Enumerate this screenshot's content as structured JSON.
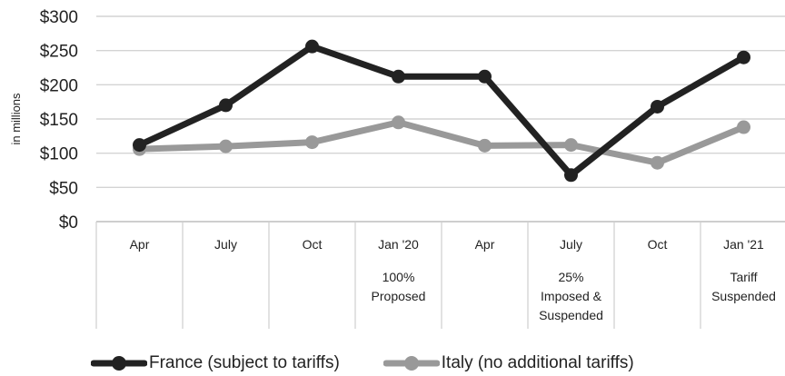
{
  "chart_data": {
    "type": "line",
    "x": [
      "Apr",
      "July",
      "Oct",
      "Jan '20",
      "Apr",
      "July",
      "Oct",
      "Jan '21"
    ],
    "annotations": [
      {
        "index": 3,
        "lines": [
          "100%",
          "Proposed"
        ]
      },
      {
        "index": 5,
        "lines": [
          "25%",
          "Imposed &",
          "Suspended"
        ]
      },
      {
        "index": 7,
        "lines": [
          "Tariff",
          "Suspended"
        ]
      }
    ],
    "series": [
      {
        "name": "France (subject to tariffs)",
        "color": "#222222",
        "values": [
          112,
          170,
          256,
          212,
          212,
          68,
          168,
          240
        ]
      },
      {
        "name": "Italy (no additional tariffs)",
        "color": "#999999",
        "values": [
          106,
          110,
          116,
          145,
          111,
          112,
          86,
          138
        ]
      }
    ],
    "y_ticks": [
      "$0",
      "$50",
      "$100",
      "$150",
      "$200",
      "$250",
      "$300"
    ],
    "ylabel": "in millions",
    "ylim": [
      0,
      300
    ],
    "grid": true,
    "legend_position": "bottom"
  }
}
